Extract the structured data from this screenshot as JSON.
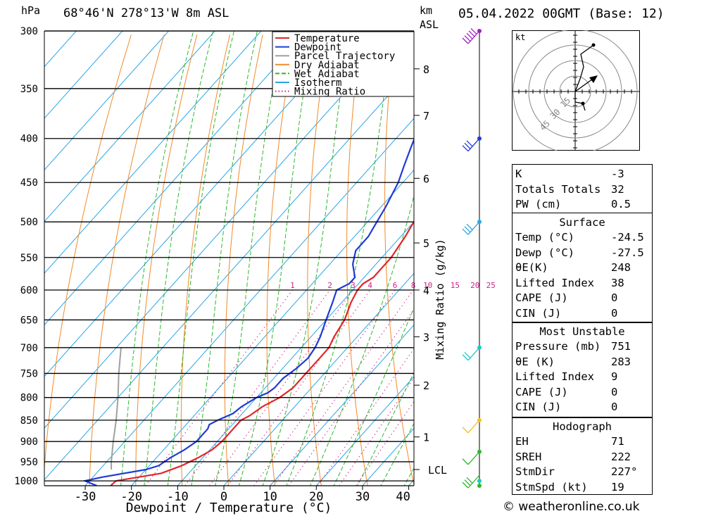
{
  "header": {
    "unit_p": "hPa",
    "location": "68°46'N  278°13'W  8m  ASL",
    "km": "km",
    "asl": "ASL",
    "date": "05.04.2022  00GMT  (Base: 12)"
  },
  "chart_data": {
    "type": "line",
    "title": "68°46'N  278°13'W  8m  ASL",
    "xlabel": "Dewpoint / Temperature (°C)",
    "ylabel": "hPa",
    "y_scale": "log",
    "ylim": [
      1013,
      300
    ],
    "xlim": [
      -40,
      40
    ],
    "x_ticks": [
      -30,
      -20,
      -10,
      0,
      10,
      20,
      30,
      40
    ],
    "pressure_levels": [
      300,
      350,
      400,
      450,
      500,
      550,
      600,
      650,
      700,
      750,
      800,
      850,
      900,
      950,
      1000
    ],
    "altitude_km": [
      {
        "km": "8",
        "p": 332
      },
      {
        "km": "7",
        "p": 376
      },
      {
        "km": "6",
        "p": 445
      },
      {
        "km": "5",
        "p": 529
      },
      {
        "km": "4",
        "p": 600
      },
      {
        "km": "3",
        "p": 680
      },
      {
        "km": "2",
        "p": 774
      },
      {
        "km": "1",
        "p": 889
      },
      {
        "km": "LCL",
        "p": 970
      }
    ],
    "mixing_ratio_label": "Mixing Ratio (g/kg)",
    "mixing_ratios": [
      "1",
      "2",
      "3",
      "4",
      "6",
      "8",
      "10",
      "15",
      "20",
      "25"
    ],
    "legend": [
      "Temperature",
      "Dewpoint",
      "Parcel Trajectory",
      "Dry Adiabat",
      "Wet Adiabat",
      "Isotherm",
      "Mixing Ratio"
    ],
    "series": [
      {
        "name": "Temperature",
        "color": "#e0262b",
        "points": [
          [
            1013,
            -24.5
          ],
          [
            1000,
            -24.3
          ],
          [
            980,
            -16
          ],
          [
            960,
            -13
          ],
          [
            940,
            -11
          ],
          [
            920,
            -9.5
          ],
          [
            900,
            -9
          ],
          [
            880,
            -9
          ],
          [
            850,
            -9
          ],
          [
            840,
            -8
          ],
          [
            820,
            -7
          ],
          [
            800,
            -5
          ],
          [
            780,
            -4
          ],
          [
            750,
            -4
          ],
          [
            720,
            -4
          ],
          [
            700,
            -4
          ],
          [
            680,
            -5
          ],
          [
            650,
            -6
          ],
          [
            620,
            -8
          ],
          [
            600,
            -9
          ],
          [
            590,
            -9
          ],
          [
            580,
            -8
          ],
          [
            550,
            -8
          ],
          [
            520,
            -9
          ],
          [
            500,
            -10
          ],
          [
            470,
            -11.5
          ],
          [
            450,
            -13
          ],
          [
            430,
            -14.5
          ],
          [
            410,
            -16
          ],
          [
            400,
            -17
          ],
          [
            390,
            -17
          ],
          [
            380,
            -16
          ],
          [
            370,
            -17
          ],
          [
            350,
            -19
          ],
          [
            330,
            -21
          ],
          [
            310,
            -23
          ],
          [
            300,
            -24
          ]
        ]
      },
      {
        "name": "Dewpoint",
        "color": "#1f3bd6",
        "points": [
          [
            1013,
            -27.5
          ],
          [
            1000,
            -31
          ],
          [
            990,
            -28
          ],
          [
            970,
            -20
          ],
          [
            960,
            -18
          ],
          [
            940,
            -17
          ],
          [
            920,
            -15.5
          ],
          [
            900,
            -14.5
          ],
          [
            870,
            -14.5
          ],
          [
            860,
            -15
          ],
          [
            850,
            -14
          ],
          [
            835,
            -12
          ],
          [
            820,
            -11.5
          ],
          [
            800,
            -10
          ],
          [
            790,
            -8.5
          ],
          [
            780,
            -8
          ],
          [
            760,
            -8
          ],
          [
            740,
            -7
          ],
          [
            720,
            -6.5
          ],
          [
            700,
            -7
          ],
          [
            680,
            -8
          ],
          [
            650,
            -10
          ],
          [
            620,
            -12
          ],
          [
            600,
            -13.5
          ],
          [
            590,
            -12
          ],
          [
            580,
            -12
          ],
          [
            560,
            -15
          ],
          [
            540,
            -17
          ],
          [
            520,
            -17
          ],
          [
            500,
            -18
          ],
          [
            480,
            -19
          ],
          [
            450,
            -21
          ],
          [
            430,
            -23
          ],
          [
            410,
            -25
          ],
          [
            400,
            -26
          ],
          [
            390,
            -25
          ],
          [
            380,
            -24
          ],
          [
            370,
            -25
          ],
          [
            350,
            -26
          ],
          [
            330,
            -27
          ],
          [
            310,
            -29
          ],
          [
            300,
            -30
          ]
        ]
      },
      {
        "name": "Parcel Trajectory",
        "color": "#a0a0a0",
        "points": [
          [
            970,
            -27.5
          ],
          [
            950,
            -29
          ],
          [
            900,
            -32.5
          ],
          [
            850,
            -36
          ],
          [
            800,
            -40
          ],
          [
            750,
            -44.5
          ],
          [
            700,
            -49
          ]
        ]
      }
    ]
  },
  "hodograph": {
    "unit": "kt",
    "rings": [
      "15",
      "30",
      "45"
    ]
  },
  "indices": {
    "rows": [
      {
        "label": "K",
        "value": "-3"
      },
      {
        "label": "Totals Totals",
        "value": "32"
      },
      {
        "label": "PW (cm)",
        "value": "0.5"
      }
    ]
  },
  "surface": {
    "title": "Surface",
    "rows": [
      {
        "label": "Temp (°C)",
        "value": "-24.5"
      },
      {
        "label": "Dewp (°C)",
        "value": "-27.5"
      },
      {
        "label": "θE(K)",
        "value": "248"
      },
      {
        "label": "Lifted Index",
        "value": "38"
      },
      {
        "label": "CAPE (J)",
        "value": "0"
      },
      {
        "label": "CIN (J)",
        "value": "0"
      }
    ]
  },
  "most_unstable": {
    "title": "Most Unstable",
    "rows": [
      {
        "label": "Pressure (mb)",
        "value": "751"
      },
      {
        "label": "θE (K)",
        "value": "283"
      },
      {
        "label": "Lifted Index",
        "value": "9"
      },
      {
        "label": "CAPE (J)",
        "value": "0"
      },
      {
        "label": "CIN (J)",
        "value": "0"
      }
    ]
  },
  "hodo_stats": {
    "title": "Hodograph",
    "rows": [
      {
        "label": "EH",
        "value": "71"
      },
      {
        "label": "SREH",
        "value": "222"
      },
      {
        "label": "StmDir",
        "value": "227°"
      },
      {
        "label": "StmSpd (kt)",
        "value": "19"
      }
    ]
  },
  "footer": {
    "copyright": "© weatheronline.co.uk"
  }
}
